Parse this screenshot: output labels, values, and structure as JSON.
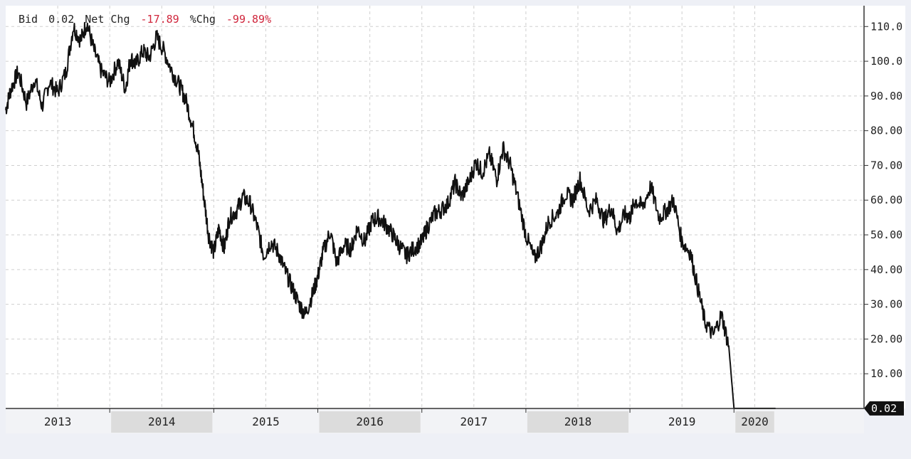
{
  "header": {
    "bid_label": "Bid",
    "bid_value": "0.02",
    "netchg_label": "Net Chg",
    "netchg_value": "-17.89",
    "pctchg_label": "%Chg",
    "pctchg_value": "-99.89%"
  },
  "colors": {
    "line": "#111111",
    "negative": "#d0263c",
    "grid": "#cfcfcf",
    "shade": "#dcdcdc",
    "last_badge": "#111111"
  },
  "chart_data": {
    "type": "line",
    "title": "",
    "xlabel": "",
    "ylabel": "",
    "ylim": [
      0,
      116
    ],
    "xlim": [
      2012.0,
      2020.25
    ],
    "yticks": [
      {
        "value": 110,
        "label": "110.0"
      },
      {
        "value": 100,
        "label": "100.0"
      },
      {
        "value": 90,
        "label": "90.00"
      },
      {
        "value": 80,
        "label": "80.00"
      },
      {
        "value": 70,
        "label": "70.00"
      },
      {
        "value": 60,
        "label": "60.00"
      },
      {
        "value": 50,
        "label": "50.00"
      },
      {
        "value": 40,
        "label": "40.00"
      },
      {
        "value": 30,
        "label": "30.00"
      },
      {
        "value": 20,
        "label": "20.00"
      },
      {
        "value": 10,
        "label": "10.00"
      }
    ],
    "years": [
      {
        "label": "2013",
        "start": 2012.0,
        "end": 2013.0,
        "shaded": false
      },
      {
        "label": "2014",
        "start": 2013.0,
        "end": 2014.0,
        "shaded": true
      },
      {
        "label": "2015",
        "start": 2014.0,
        "end": 2015.0,
        "shaded": false
      },
      {
        "label": "2016",
        "start": 2015.0,
        "end": 2016.0,
        "shaded": true
      },
      {
        "label": "2017",
        "start": 2016.0,
        "end": 2017.0,
        "shaded": false
      },
      {
        "label": "2018",
        "start": 2017.0,
        "end": 2018.0,
        "shaded": true
      },
      {
        "label": "2019",
        "start": 2018.0,
        "end": 2019.0,
        "shaded": false
      },
      {
        "label": "2020",
        "start": 2019.0,
        "end": 2019.4,
        "shaded": true
      }
    ],
    "last_value": "0.02",
    "grid": true,
    "series": [
      {
        "x": [
          2012.0,
          2012.05,
          2012.12,
          2012.2,
          2012.28,
          2012.35,
          2012.42,
          2012.5,
          2012.58,
          2012.65,
          2012.72,
          2012.78,
          2012.85,
          2012.92,
          2013.0,
          2013.08,
          2013.15,
          2013.2,
          2013.25,
          2013.32,
          2013.38,
          2013.45,
          2013.52,
          2013.6,
          2013.67,
          2013.73,
          2013.8,
          2013.85,
          2013.9,
          2013.95,
          2014.0,
          2014.05,
          2014.1,
          2014.15,
          2014.22,
          2014.28,
          2014.35,
          2014.42,
          2014.48,
          2014.55,
          2014.62,
          2014.68,
          2014.75,
          2014.82,
          2014.88,
          2014.95,
          2015.0,
          2015.05,
          2015.12,
          2015.18,
          2015.25,
          2015.32,
          2015.38,
          2015.45,
          2015.52,
          2015.58,
          2015.65,
          2015.72,
          2015.78,
          2015.85,
          2015.92,
          2016.0,
          2016.05,
          2016.12,
          2016.18,
          2016.25,
          2016.32,
          2016.38,
          2016.45,
          2016.52,
          2016.58,
          2016.65,
          2016.72,
          2016.78,
          2016.85,
          2016.92,
          2017.0,
          2017.08,
          2017.15,
          2017.22,
          2017.3,
          2017.38,
          2017.45,
          2017.52,
          2017.6,
          2017.68,
          2017.75,
          2017.82,
          2017.88,
          2017.95,
          2018.0,
          2018.05,
          2018.12,
          2018.2,
          2018.28,
          2018.35,
          2018.42,
          2018.5,
          2018.58,
          2018.65,
          2018.72,
          2018.8,
          2018.88,
          2018.95,
          2019.0,
          2019.05,
          2019.08,
          2019.12,
          2019.16,
          2019.19,
          2019.22,
          2019.25,
          2019.28,
          2019.31,
          2019.34,
          2019.37,
          2019.39,
          2019.4
        ],
        "values": [
          86,
          92,
          97,
          88,
          95,
          87,
          94,
          91,
          97,
          110,
          106,
          111,
          103,
          97,
          94,
          100,
          92,
          101,
          99,
          103,
          101,
          107,
          103,
          97,
          93,
          89,
          81,
          74,
          62,
          50,
          45,
          52,
          46,
          55,
          57,
          61,
          59,
          52,
          44,
          48,
          45,
          40,
          35,
          30,
          27,
          33,
          38,
          45,
          51,
          42,
          47,
          46,
          52,
          48,
          54,
          55,
          53,
          50,
          47,
          44,
          46,
          48,
          52,
          56,
          57,
          59,
          65,
          61,
          65,
          71,
          68,
          73,
          66,
          75,
          70,
          61,
          50,
          43,
          47,
          54,
          56,
          62,
          60,
          66,
          57,
          60,
          54,
          58,
          51,
          56,
          55,
          60,
          58,
          64,
          55,
          57,
          60,
          48,
          45,
          35,
          25,
          21,
          27,
          18,
          0.02,
          0.02,
          0.02,
          0.02,
          0.02,
          0.02,
          0.02,
          0.02,
          0.02,
          0.02,
          0.02,
          0.02,
          0.02,
          0.02
        ]
      }
    ]
  }
}
